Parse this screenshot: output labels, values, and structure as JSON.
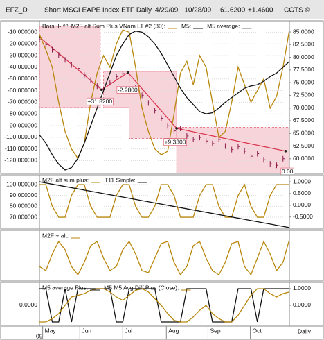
{
  "header": {
    "symbol": "EFZ_D",
    "name": "Short MSCI EAPE Index ETF Daily",
    "range": "4/29/09 - 10/28/09",
    "last": "61.6200",
    "change": "+1.4600",
    "source": "CGTS ©"
  },
  "chart_data": [
    {
      "type": "line",
      "legend_prefix": "Bars: I- ^^",
      "ylim": [
        -131,
        -5
      ],
      "y2lim": [
        57.1,
        86.1
      ],
      "grid": true,
      "yticks": [
        {
          "value": -10,
          "label": "-10.000000"
        },
        {
          "value": -20,
          "label": "-20.000000"
        },
        {
          "value": -30,
          "label": "-30.000000"
        },
        {
          "value": -40,
          "label": "-40.000000"
        },
        {
          "value": -50,
          "label": "-50.000000"
        },
        {
          "value": -60,
          "label": "-60.000000"
        },
        {
          "value": -70,
          "label": "-70.000000"
        },
        {
          "value": -80,
          "label": "-80.000000"
        },
        {
          "value": -90,
          "label": "-90.000000"
        },
        {
          "value": -100,
          "label": "-100.000000"
        },
        {
          "value": -110,
          "label": "-110.000000"
        },
        {
          "value": -120,
          "label": "-120.000000"
        }
      ],
      "y2ticks": [
        {
          "value": 85,
          "label": "85.0000"
        },
        {
          "value": 82.5,
          "label": "82.5000"
        },
        {
          "value": 80,
          "label": "80.0000"
        },
        {
          "value": 77.5,
          "label": "77.5000"
        },
        {
          "value": 75,
          "label": "75.0000"
        },
        {
          "value": 72.5,
          "label": "72.5000"
        },
        {
          "value": 70,
          "label": "70.0000"
        },
        {
          "value": 67.5,
          "label": "67.5000"
        },
        {
          "value": 65,
          "label": "65.0000"
        },
        {
          "value": 62.5,
          "label": "62.5000"
        },
        {
          "value": 60,
          "label": "60.0000"
        }
      ],
      "zones": [
        {
          "x": [
            0,
            9.5
          ],
          "y": [
            70.1,
            86.1
          ]
        },
        {
          "x": [
            10,
            14
          ],
          "y": [
            70.1,
            77.2
          ]
        },
        {
          "x": [
            14,
            21.4
          ],
          "y": [
            64,
            77.2
          ]
        },
        {
          "x": [
            21.4,
            39
          ],
          "y": [
            57.1,
            66.2
          ]
        }
      ],
      "zone_color": "#f2b8c0",
      "trend_color": "#d9304a",
      "trend": {
        "x": [
          0,
          9.7,
          13.8,
          21.4,
          38.4
        ],
        "y": [
          84,
          73.6,
          77,
          66,
          61.5
        ]
      },
      "annotations": [
        {
          "text": "+31.8200",
          "x": 7.5,
          "y": 71.2
        },
        {
          "text": "-2.9800",
          "x": 12.2,
          "y": 73.5
        },
        {
          "text": "+9.3300",
          "x": 19.5,
          "y": 63.2
        },
        {
          "text": "0.00",
          "x": 37.8,
          "y": 57.4
        }
      ],
      "series": [
        {
          "color": "#8a1a4a",
          "axis": "y2",
          "style": "bars",
          "values": [
            83.5,
            82.5,
            81.5,
            80.5,
            79.5,
            78.5,
            77.8,
            76.5,
            75.5,
            74.3,
            73.6,
            75,
            76.2,
            76.8,
            75.5,
            74,
            72.5,
            71,
            69.5,
            68,
            66.5,
            65.5,
            66,
            64.5,
            63.8,
            64.2,
            63.5,
            63,
            63.8,
            62.5,
            61.8,
            62.4,
            61.5,
            60.5,
            61,
            59.8,
            59,
            58.7,
            60,
            61.62
          ]
        },
        {
          "name": "M2F alt Sum Plus VNam LT #2 (30):",
          "color": "#b8860b",
          "values": [
            -12,
            -25,
            -40,
            -70,
            -95,
            -110,
            -118,
            -105,
            -70,
            -45,
            -30,
            -40,
            -20,
            -8,
            -10,
            -40,
            -75,
            -95,
            -110,
            -115,
            -112,
            -80,
            -45,
            -35,
            -55,
            -30,
            -40,
            -70,
            -100,
            -95,
            -70,
            -40,
            -55,
            -70,
            -60,
            -50,
            -75,
            -65,
            -40,
            -8
          ]
        },
        {
          "name": "M5:",
          "color": "#111111",
          "values": [
            -98,
            -105,
            -115,
            -123,
            -128,
            -126,
            -118,
            -105,
            -90,
            -75,
            -60,
            -45,
            -30,
            -20,
            -12,
            -9,
            -10,
            -14,
            -20,
            -28,
            -38,
            -48,
            -58,
            -66,
            -72,
            -78,
            -80,
            -79,
            -75,
            -70,
            -66,
            -62,
            -58,
            -56,
            -55,
            -52,
            -48,
            -45,
            -40,
            -35
          ]
        },
        {
          "name": "M5 average:",
          "color": "#777777",
          "values": []
        }
      ]
    },
    {
      "type": "line",
      "ylim": [
        59.2,
        105.1
      ],
      "y2lim": [
        -1.01,
        1.12
      ],
      "grid": true,
      "yticks": [
        {
          "value": 100,
          "label": "100.000000"
        },
        {
          "value": 90,
          "label": "90.000000"
        },
        {
          "value": 80,
          "label": "80.000000"
        },
        {
          "value": 70,
          "label": "70.000000"
        }
      ],
      "y2ticks": [
        {
          "value": 1,
          "label": "1.0000"
        },
        {
          "value": 0.5,
          "label": "0.5000"
        },
        {
          "value": 0,
          "label": "0.0000"
        },
        {
          "value": -0.5,
          "label": "-0.5000"
        }
      ],
      "series": [
        {
          "name": "M2F alt sum plus:",
          "color": "#b8860b",
          "values": [
            100,
            100,
            80,
            70,
            70,
            90,
            100,
            100,
            80,
            70,
            70,
            70,
            90,
            100,
            100,
            80,
            70,
            70,
            80,
            100,
            100,
            90,
            70,
            70,
            70,
            90,
            100,
            100,
            80,
            70,
            70,
            90,
            100,
            80,
            70,
            70,
            90,
            100,
            100,
            100
          ]
        },
        {
          "name": "T11 Simple:",
          "color": "#111111",
          "axis": "y2",
          "values": [
            1,
            0.95,
            0.9,
            0.85,
            0.8,
            0.75,
            0.7,
            0.65,
            0.6,
            0.55,
            0.5,
            0.45,
            0.4,
            0.35,
            0.3,
            0.25,
            0.2,
            0.15,
            0.1,
            0.05,
            0,
            -0.05,
            -0.1,
            -0.15,
            -0.2,
            -0.25,
            -0.3,
            -0.35,
            -0.4,
            -0.45,
            -0.5,
            -0.55,
            -0.6,
            -0.65,
            -0.7,
            -0.75,
            -0.8,
            -0.85,
            -0.9,
            -0.95
          ]
        }
      ]
    },
    {
      "type": "line",
      "ylim": [
        0,
        1
      ],
      "series": [
        {
          "name": "M2F + alt:",
          "color": "#b8860b",
          "values": [
            0.3,
            0.2,
            0.6,
            0.9,
            0.7,
            0.3,
            0.1,
            0.4,
            0.8,
            0.9,
            0.5,
            0.2,
            0.3,
            0.7,
            0.9,
            0.6,
            0.2,
            0.15,
            0.5,
            0.85,
            0.9,
            0.4,
            0.1,
            0.3,
            0.8,
            0.9,
            0.5,
            0.2,
            0.1,
            0.4,
            0.85,
            0.9,
            0.3,
            0.1,
            0.5,
            0.9,
            0.6,
            0.2,
            0.4,
            0.95
          ]
        }
      ]
    },
    {
      "type": "line",
      "ylim": [
        -1.25,
        1.29
      ],
      "y2lim": [
        -1.25,
        1.29
      ],
      "yticks": [
        {
          "value": 0,
          "label": "0.0000"
        }
      ],
      "y2ticks": [
        {
          "value": 1,
          "label": "1.0000"
        },
        {
          "value": 0,
          "label": "0.0000"
        }
      ],
      "xlim": [
        0,
        39
      ],
      "xticks": [
        {
          "value": 0.5,
          "label": "May"
        },
        {
          "value": 6.3,
          "label": "Jun"
        },
        {
          "value": 13,
          "label": "Jul"
        },
        {
          "value": 19.8,
          "label": "Aug"
        },
        {
          "value": 26.3,
          "label": "Sep"
        },
        {
          "value": 32.9,
          "label": "Oct"
        }
      ],
      "x_sublabel": "09",
      "interval": "Daily",
      "series": [
        {
          "name": "M5 average Plus:",
          "color": "#111111",
          "values": [
            1,
            1,
            -1,
            -1,
            1,
            -1,
            1,
            1,
            1,
            1,
            1,
            1,
            -1,
            -1,
            1,
            1,
            1,
            1,
            1,
            -1,
            -1,
            -1,
            -1,
            1,
            1,
            1,
            1,
            -1,
            -1,
            -1,
            -1,
            1,
            1,
            1,
            -1,
            1,
            1,
            1,
            1,
            1
          ]
        },
        {
          "name": "M5 M5 Avg Diff Plus (Close):",
          "color": "#b8860b",
          "axis": "y2",
          "values": [
            -1,
            -1,
            -0.8,
            -0.5,
            0,
            0.5,
            0.6,
            0.7,
            0.9,
            1,
            1,
            0.8,
            0.5,
            0.3,
            0.6,
            0.9,
            1,
            0.8,
            0.4,
            0,
            -0.5,
            -0.9,
            -1,
            -1,
            -0.7,
            -0.3,
            0,
            -0.5,
            -0.8,
            -1,
            -1,
            -0.6,
            0,
            0.6,
            1,
            1,
            0.7,
            0.5,
            0.7,
            0.8
          ]
        }
      ]
    }
  ]
}
